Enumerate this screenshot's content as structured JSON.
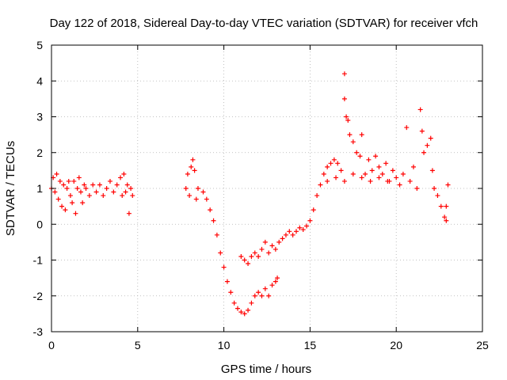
{
  "chart_data": {
    "type": "scatter",
    "title": "Day 122 of 2018, Sidereal Day-to-day VTEC variation (SDTVAR) for receiver vfch",
    "xlabel": "GPS time / hours",
    "ylabel": "SDTVAR / TECUs",
    "xlim": [
      0,
      25
    ],
    "ylim": [
      -3,
      5
    ],
    "xticks": [
      0,
      5,
      10,
      15,
      20,
      25
    ],
    "yticks": [
      -3,
      -2,
      -1,
      0,
      1,
      2,
      3,
      4,
      5
    ],
    "xtick_labels": [
      "0",
      "5",
      "10",
      "15",
      "20",
      "25"
    ],
    "ytick_labels": [
      "-3",
      "-2",
      "-1",
      "0",
      "1",
      "2",
      "3",
      "4",
      "5"
    ],
    "grid": true,
    "marker": "+",
    "color": "#ff0000",
    "series": [
      {
        "name": "SDTVAR",
        "points": [
          [
            0.0,
            1.0
          ],
          [
            0.1,
            1.3
          ],
          [
            0.2,
            0.9
          ],
          [
            0.3,
            1.4
          ],
          [
            0.4,
            0.7
          ],
          [
            0.5,
            1.2
          ],
          [
            0.6,
            0.5
          ],
          [
            0.7,
            1.1
          ],
          [
            0.8,
            0.4
          ],
          [
            0.9,
            1.0
          ],
          [
            1.0,
            1.2
          ],
          [
            1.1,
            0.8
          ],
          [
            1.2,
            0.6
          ],
          [
            1.3,
            1.2
          ],
          [
            1.4,
            0.3
          ],
          [
            1.5,
            1.0
          ],
          [
            1.6,
            1.3
          ],
          [
            1.7,
            0.9
          ],
          [
            1.8,
            0.6
          ],
          [
            1.9,
            1.1
          ],
          [
            2.0,
            1.0
          ],
          [
            2.2,
            0.8
          ],
          [
            2.4,
            1.1
          ],
          [
            2.6,
            0.9
          ],
          [
            2.8,
            1.1
          ],
          [
            3.0,
            0.8
          ],
          [
            3.2,
            1.0
          ],
          [
            3.4,
            1.2
          ],
          [
            3.6,
            0.9
          ],
          [
            3.8,
            1.1
          ],
          [
            4.0,
            1.3
          ],
          [
            4.1,
            0.8
          ],
          [
            4.2,
            1.4
          ],
          [
            4.3,
            0.9
          ],
          [
            4.4,
            1.1
          ],
          [
            4.5,
            0.3
          ],
          [
            4.6,
            1.0
          ],
          [
            4.7,
            0.8
          ],
          [
            7.8,
            1.0
          ],
          [
            7.9,
            1.4
          ],
          [
            8.0,
            0.8
          ],
          [
            8.1,
            1.6
          ],
          [
            8.2,
            1.8
          ],
          [
            8.3,
            1.5
          ],
          [
            8.4,
            0.7
          ],
          [
            8.5,
            1.0
          ],
          [
            8.8,
            0.9
          ],
          [
            9.0,
            0.7
          ],
          [
            9.2,
            0.4
          ],
          [
            9.4,
            0.1
          ],
          [
            9.6,
            -0.3
          ],
          [
            9.8,
            -0.8
          ],
          [
            10.0,
            -1.2
          ],
          [
            10.2,
            -1.6
          ],
          [
            10.4,
            -1.9
          ],
          [
            10.6,
            -2.2
          ],
          [
            10.8,
            -2.35
          ],
          [
            11.0,
            -2.45
          ],
          [
            11.2,
            -2.5
          ],
          [
            11.4,
            -2.4
          ],
          [
            11.6,
            -2.2
          ],
          [
            11.8,
            -2.0
          ],
          [
            12.0,
            -1.9
          ],
          [
            12.2,
            -2.0
          ],
          [
            12.4,
            -1.8
          ],
          [
            12.6,
            -2.0
          ],
          [
            12.8,
            -1.7
          ],
          [
            13.0,
            -1.6
          ],
          [
            13.1,
            -1.5
          ],
          [
            11.0,
            -0.9
          ],
          [
            11.2,
            -1.0
          ],
          [
            11.4,
            -1.1
          ],
          [
            11.6,
            -0.9
          ],
          [
            11.8,
            -0.8
          ],
          [
            12.0,
            -0.9
          ],
          [
            12.2,
            -0.7
          ],
          [
            12.4,
            -0.5
          ],
          [
            12.6,
            -0.8
          ],
          [
            12.8,
            -0.6
          ],
          [
            13.0,
            -0.7
          ],
          [
            13.2,
            -0.5
          ],
          [
            13.4,
            -0.4
          ],
          [
            13.6,
            -0.3
          ],
          [
            13.8,
            -0.2
          ],
          [
            14.0,
            -0.3
          ],
          [
            14.2,
            -0.2
          ],
          [
            14.4,
            -0.1
          ],
          [
            14.6,
            -0.15
          ],
          [
            14.8,
            -0.05
          ],
          [
            15.0,
            0.1
          ],
          [
            15.2,
            0.4
          ],
          [
            15.4,
            0.8
          ],
          [
            15.6,
            1.1
          ],
          [
            15.8,
            1.4
          ],
          [
            16.0,
            1.6
          ],
          [
            16.2,
            1.7
          ],
          [
            16.4,
            1.8
          ],
          [
            16.6,
            1.7
          ],
          [
            16.8,
            1.5
          ],
          [
            17.0,
            4.2
          ],
          [
            17.0,
            3.5
          ],
          [
            17.1,
            3.0
          ],
          [
            17.2,
            2.9
          ],
          [
            17.3,
            2.5
          ],
          [
            17.5,
            2.3
          ],
          [
            17.7,
            2.0
          ],
          [
            17.9,
            1.9
          ],
          [
            18.0,
            2.5
          ],
          [
            18.2,
            1.4
          ],
          [
            18.4,
            1.8
          ],
          [
            18.6,
            1.5
          ],
          [
            18.8,
            1.9
          ],
          [
            19.0,
            1.6
          ],
          [
            19.2,
            1.4
          ],
          [
            19.4,
            1.7
          ],
          [
            19.6,
            1.2
          ],
          [
            19.8,
            1.5
          ],
          [
            20.0,
            1.3
          ],
          [
            20.2,
            1.1
          ],
          [
            20.4,
            1.4
          ],
          [
            20.6,
            2.7
          ],
          [
            20.8,
            1.2
          ],
          [
            21.0,
            1.6
          ],
          [
            21.2,
            1.0
          ],
          [
            21.4,
            3.2
          ],
          [
            21.5,
            2.6
          ],
          [
            21.6,
            2.0
          ],
          [
            21.8,
            2.2
          ],
          [
            22.0,
            2.4
          ],
          [
            22.1,
            1.5
          ],
          [
            22.2,
            1.0
          ],
          [
            22.4,
            0.8
          ],
          [
            22.6,
            0.5
          ],
          [
            22.8,
            0.2
          ],
          [
            22.9,
            0.1
          ],
          [
            22.9,
            0.5
          ],
          [
            23.0,
            1.1
          ],
          [
            16.0,
            1.2
          ],
          [
            16.5,
            1.3
          ],
          [
            17.0,
            1.2
          ],
          [
            17.5,
            1.4
          ],
          [
            18.0,
            1.3
          ],
          [
            18.5,
            1.2
          ],
          [
            19.0,
            1.3
          ],
          [
            19.5,
            1.2
          ]
        ]
      }
    ]
  }
}
